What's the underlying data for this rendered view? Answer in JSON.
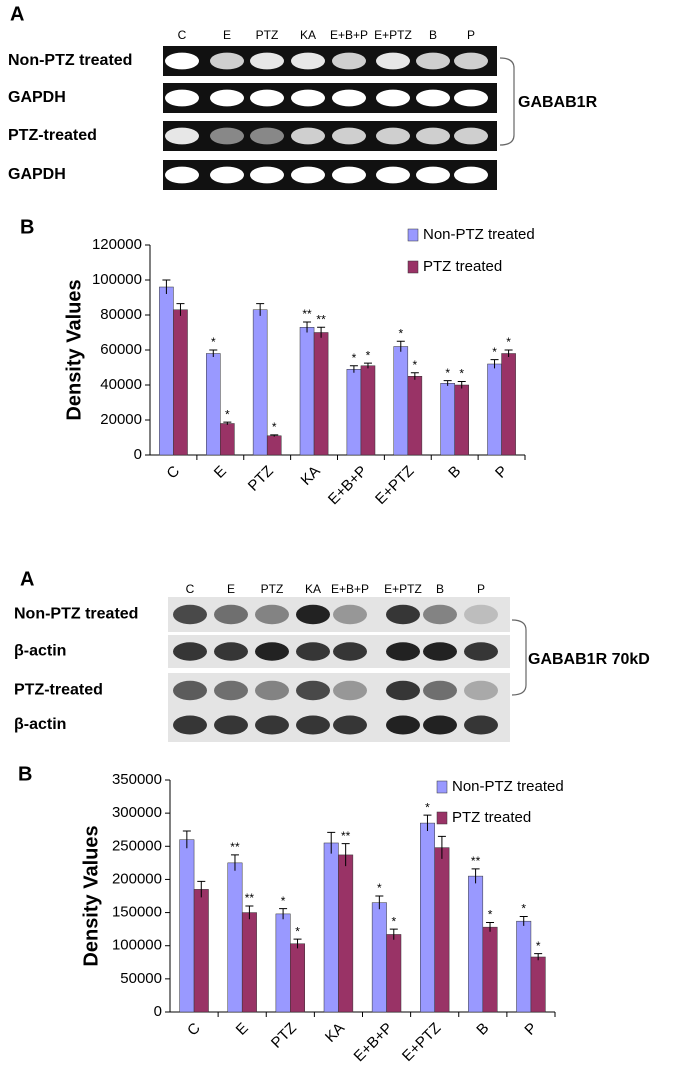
{
  "gels": [
    {
      "panel": "A",
      "lanes": [
        "C",
        "E",
        "PTZ",
        "KA",
        "E+B+P",
        "E+PTZ",
        "B",
        "P"
      ],
      "rows": [
        "Non-PTZ treated",
        "GAPDH",
        "PTZ-treated",
        "GAPDH"
      ],
      "bracket_label": "GABAB1R"
    },
    {
      "panel": "A",
      "lanes": [
        "C",
        "E",
        "PTZ",
        "KA",
        "E+B+P",
        "E+PTZ",
        "B",
        "P"
      ],
      "rows": [
        "Non-PTZ treated",
        "β-actin",
        "PTZ-treated",
        "β-actin"
      ],
      "bracket_label": "GABAB1R 70kD"
    }
  ],
  "chart_data": [
    {
      "type": "bar",
      "panel": "B",
      "y_label": "Density Values",
      "categories": [
        "C",
        "E",
        "PTZ",
        "KA",
        "E+B+P",
        "E+PTZ",
        "B",
        "P"
      ],
      "series": [
        {
          "name": "Non-PTZ treated",
          "color": "#9999ff",
          "values": [
            96000,
            58000,
            83000,
            73000,
            49000,
            62000,
            41000,
            52000
          ],
          "errors": [
            4000,
            2000,
            3500,
            3000,
            2000,
            3000,
            1500,
            2500
          ],
          "labels": [
            null,
            "*",
            null,
            "**",
            "*",
            "*",
            "*",
            "*"
          ]
        },
        {
          "name": "PTZ treated",
          "color": "#993366",
          "values": [
            83000,
            18000,
            11000,
            70000,
            51000,
            45000,
            40000,
            58000
          ],
          "errors": [
            3500,
            800,
            500,
            3000,
            1500,
            2000,
            2000,
            2000
          ],
          "labels": [
            null,
            "*",
            "*",
            "**",
            "*",
            "*",
            "*",
            "*"
          ]
        }
      ],
      "ylim": [
        0,
        120000
      ],
      "yticks": [
        0,
        20000,
        40000,
        60000,
        80000,
        100000,
        120000
      ],
      "legend": "upper right"
    },
    {
      "type": "bar",
      "panel": "B",
      "y_label": "Density Values",
      "categories": [
        "C",
        "E",
        "PTZ",
        "KA",
        "E+B+P",
        "E+PTZ",
        "B",
        "P"
      ],
      "series": [
        {
          "name": "Non-PTZ treated",
          "color": "#9999ff",
          "values": [
            260000,
            225000,
            148000,
            255000,
            165000,
            285000,
            205000,
            137000
          ],
          "errors": [
            13000,
            12000,
            8000,
            16000,
            10000,
            12000,
            11000,
            7000
          ],
          "labels": [
            null,
            "**",
            "*",
            null,
            "*",
            "*",
            "**",
            "*"
          ]
        },
        {
          "name": "PTZ treated",
          "color": "#993366",
          "values": [
            185000,
            150000,
            103000,
            237000,
            117000,
            248000,
            128000,
            83000
          ],
          "errors": [
            12000,
            10000,
            7000,
            17000,
            8000,
            17000,
            7000,
            5000
          ],
          "labels": [
            null,
            "**",
            "*",
            "**",
            "*",
            null,
            "*",
            "*"
          ]
        }
      ],
      "ylim": [
        0,
        350000
      ],
      "yticks": [
        0,
        50000,
        100000,
        150000,
        200000,
        250000,
        300000,
        350000
      ],
      "legend": "upper right"
    }
  ]
}
